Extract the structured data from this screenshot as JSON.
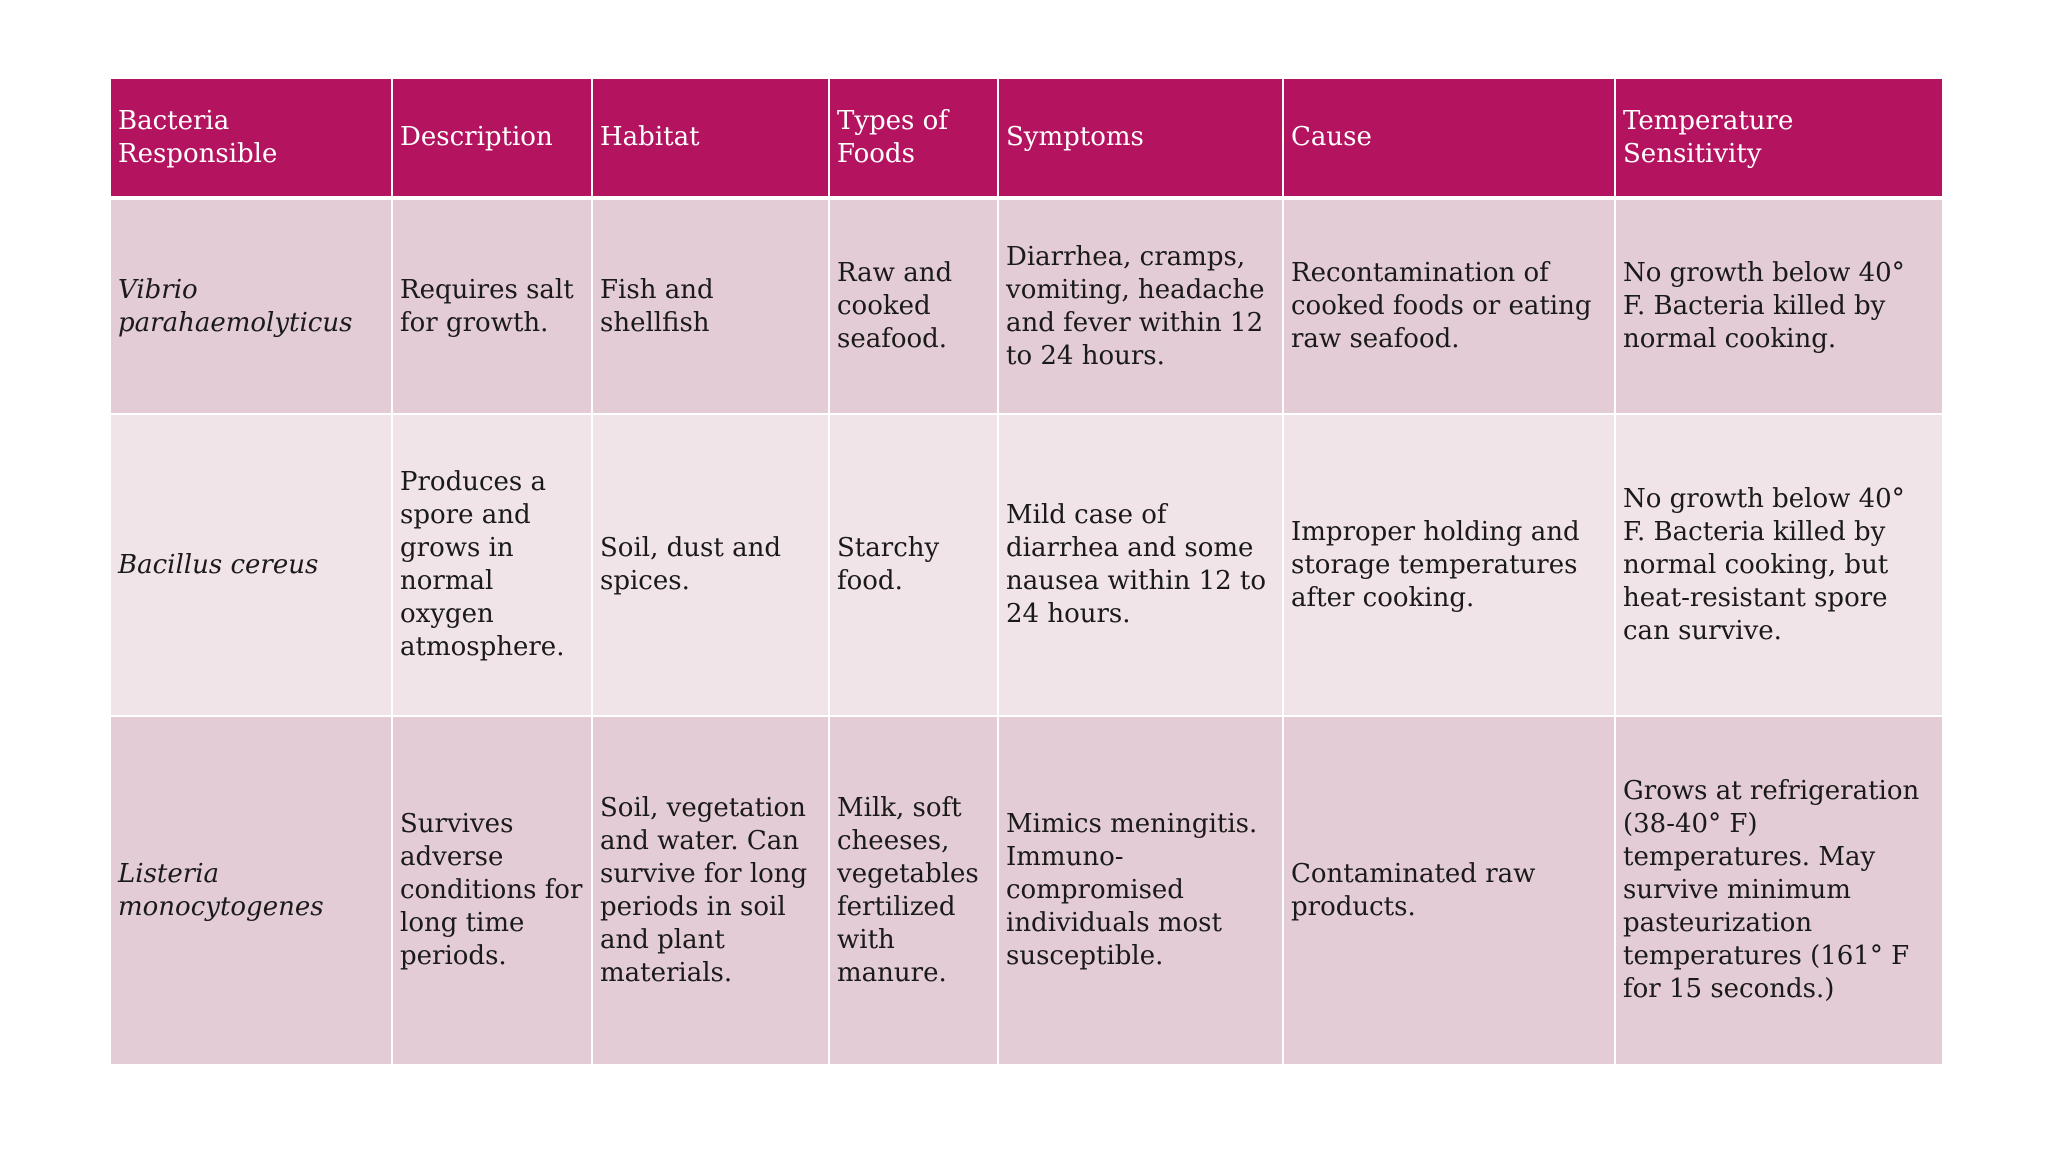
{
  "table": {
    "headers": [
      "Bacteria Responsible",
      "Description",
      "Habitat",
      "Types of Foods",
      "Symptoms",
      "Cause",
      "Temperature Sensitivity"
    ],
    "rows": [
      {
        "bacteria": "Vibrio parahaemolyticus",
        "description": "Requires salt for growth.",
        "habitat": "Fish and shellfish",
        "foods": "Raw and cooked seafood.",
        "symptoms": "Diarrhea, cramps, vomiting, headache and fever within 12 to 24 hours.",
        "cause": "Recontamination of cooked foods or eating raw seafood.",
        "temperature": "No growth below 40° F. Bacteria killed by normal cooking."
      },
      {
        "bacteria": "Bacillus cereus",
        "description": "Produces a spore and grows in normal oxygen atmosphere.",
        "habitat": "Soil, dust and spices.",
        "foods": "Starchy food.",
        "symptoms": "Mild case of diarrhea and some nausea within 12 to 24 hours.",
        "cause": "Improper holding and storage temperatures after cooking.",
        "temperature": "No growth below 40° F. Bacteria killed by normal cooking, but heat-resistant spore can survive."
      },
      {
        "bacteria": "Listeria monocytogenes",
        "description": "Survives adverse conditions for long time periods.",
        "habitat": "Soil, vegetation and water. Can survive for long periods in soil and plant materials.",
        "foods": "Milk, soft cheeses, vegetables fertilized with manure.",
        "symptoms": "Mimics meningitis. Immuno-compromised individuals most susceptible.",
        "cause": "Contaminated raw products.",
        "temperature": "Grows at refrigeration (38-40° F) temperatures. May survive minimum pasteurization temperatures (161° F for 15 seconds.)"
      }
    ]
  },
  "colors": {
    "header_bg": "#b3135f",
    "row_dark": "#e3ccd5",
    "row_light": "#f1e4e9"
  }
}
